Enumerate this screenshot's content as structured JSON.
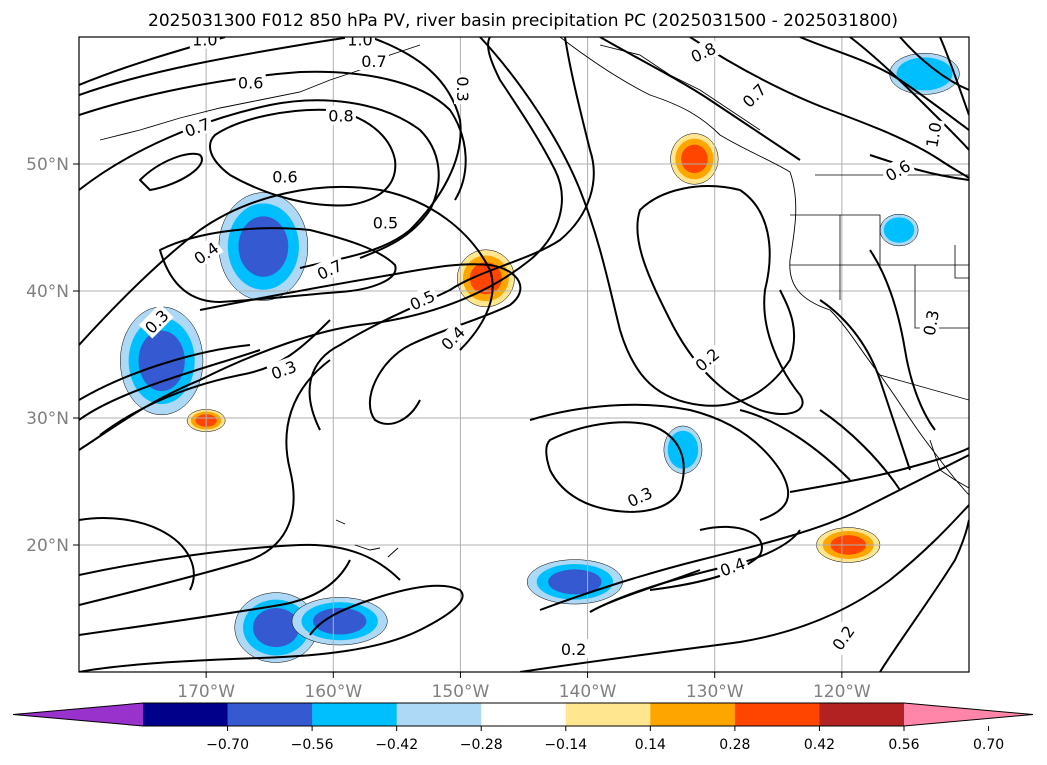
{
  "title": "2025031300 F012 850 hPa PV, river basin precipitation PC (2025031500 - 2025031800)",
  "chart_data": {
    "type": "map-contour",
    "title": "2025031300 F012 850 hPa PV, river basin precipitation PC (2025031500 - 2025031800)",
    "projection": "lat-lon",
    "lon_range": [
      -180,
      -110
    ],
    "lat_range": [
      10,
      60
    ],
    "grid": true,
    "x_ticks": [
      "170°W",
      "160°W",
      "150°W",
      "140°W",
      "130°W",
      "120°W"
    ],
    "x_tick_values": [
      -170,
      -160,
      -150,
      -140,
      -130,
      -120
    ],
    "y_ticks": [
      "20°N",
      "30°N",
      "40°N",
      "50°N"
    ],
    "y_tick_values": [
      20,
      30,
      40,
      50
    ],
    "contour_labels": [
      {
        "text": "1.0",
        "lon": -170.1,
        "lat": 59.8,
        "rot": 0
      },
      {
        "text": "1.0",
        "lon": -157.9,
        "lat": 59.8,
        "rot": 0
      },
      {
        "text": "0.7",
        "lon": -156.8,
        "lat": 58.1,
        "rot": 0
      },
      {
        "text": "0.6",
        "lon": -166.5,
        "lat": 56.4,
        "rot": 0
      },
      {
        "text": "0.3",
        "lon": -149.8,
        "lat": 55.9,
        "rot": 90
      },
      {
        "text": "0.7",
        "lon": -170.7,
        "lat": 52.9,
        "rot": -20
      },
      {
        "text": "0.8",
        "lon": -159.4,
        "lat": 53.8,
        "rot": 0
      },
      {
        "text": "0.6",
        "lon": -163.8,
        "lat": 49.0,
        "rot": 0
      },
      {
        "text": "0.5",
        "lon": -155.9,
        "lat": 45.4,
        "rot": 0
      },
      {
        "text": "0.4",
        "lon": -170.0,
        "lat": 43.0,
        "rot": -35
      },
      {
        "text": "0.7",
        "lon": -160.3,
        "lat": 41.7,
        "rot": -25
      },
      {
        "text": "0.5",
        "lon": -153.0,
        "lat": 39.3,
        "rot": -25
      },
      {
        "text": "0.3",
        "lon": -173.9,
        "lat": 37.6,
        "rot": -45
      },
      {
        "text": "0.4",
        "lon": -150.6,
        "lat": 36.3,
        "rot": -45
      },
      {
        "text": "0.3",
        "lon": -163.9,
        "lat": 33.8,
        "rot": -20
      },
      {
        "text": "0.8",
        "lon": -130.9,
        "lat": 58.8,
        "rot": -25
      },
      {
        "text": "0.7",
        "lon": -126.9,
        "lat": 55.4,
        "rot": -45
      },
      {
        "text": "0.6",
        "lon": -115.6,
        "lat": 49.5,
        "rot": -30
      },
      {
        "text": "1.0",
        "lon": -112.8,
        "lat": 52.3,
        "rot": -80
      },
      {
        "text": "0.2",
        "lon": -130.6,
        "lat": 34.6,
        "rot": -40
      },
      {
        "text": "0.3",
        "lon": -113.0,
        "lat": 37.5,
        "rot": -80
      },
      {
        "text": "0.3",
        "lon": -135.9,
        "lat": 23.8,
        "rot": -25
      },
      {
        "text": "0.4",
        "lon": -128.6,
        "lat": 18.3,
        "rot": -20
      },
      {
        "text": "0.2",
        "lon": -141.1,
        "lat": 11.8,
        "rot": 0
      },
      {
        "text": "0.2",
        "lon": -119.9,
        "lat": 12.7,
        "rot": -55
      }
    ],
    "pc_features": [
      {
        "sign": "negative",
        "level": -0.56,
        "lon": -173.5,
        "lat": 34.5,
        "rx_deg": 2.6,
        "ry_deg": 3.4
      },
      {
        "sign": "negative",
        "level": -0.56,
        "lon": -165.5,
        "lat": 43.5,
        "rx_deg": 2.8,
        "ry_deg": 3.4
      },
      {
        "sign": "negative",
        "level": -0.56,
        "lon": -164.5,
        "lat": 13.5,
        "rx_deg": 2.6,
        "ry_deg": 2.2
      },
      {
        "sign": "negative",
        "level": -0.56,
        "lon": -159.5,
        "lat": 14.0,
        "rx_deg": 3.0,
        "ry_deg": 1.5
      },
      {
        "sign": "negative",
        "level": -0.56,
        "lon": -141.0,
        "lat": 17.1,
        "rx_deg": 3.0,
        "ry_deg": 1.4
      },
      {
        "sign": "negative",
        "level": -0.28,
        "lon": -132.5,
        "lat": 27.5,
        "rx_deg": 1.2,
        "ry_deg": 1.5
      },
      {
        "sign": "negative",
        "level": -0.28,
        "lon": -115.5,
        "lat": 44.8,
        "rx_deg": 1.2,
        "ry_deg": 1.0
      },
      {
        "sign": "negative",
        "level": -0.28,
        "lon": -113.5,
        "lat": 57.1,
        "rx_deg": 2.2,
        "ry_deg": 1.3
      },
      {
        "sign": "positive",
        "level": 0.42,
        "lon": -148.0,
        "lat": 41.0,
        "rx_deg": 1.8,
        "ry_deg": 1.8
      },
      {
        "sign": "positive",
        "level": 0.42,
        "lon": -131.6,
        "lat": 50.4,
        "rx_deg": 1.5,
        "ry_deg": 1.6
      },
      {
        "sign": "positive",
        "level": 0.42,
        "lon": -119.5,
        "lat": 20.0,
        "rx_deg": 2.0,
        "ry_deg": 1.1
      },
      {
        "sign": "positive",
        "level": 0.42,
        "lon": -170.0,
        "lat": 29.8,
        "rx_deg": 1.2,
        "ry_deg": 0.7
      }
    ],
    "colorbar": {
      "ticks": [
        "−0.70",
        "−0.56",
        "−0.42",
        "−0.28",
        "−0.14",
        "0.14",
        "0.28",
        "0.42",
        "0.56",
        "0.70"
      ],
      "colors": [
        "#9932cc",
        "#00008b",
        "#3559d0",
        "#00bfff",
        "#add8f6",
        "#ffffff",
        "#ffe68f",
        "#ffa500",
        "#ff4500",
        "#b22222",
        "#ff86a8"
      ],
      "extend": "both"
    }
  }
}
